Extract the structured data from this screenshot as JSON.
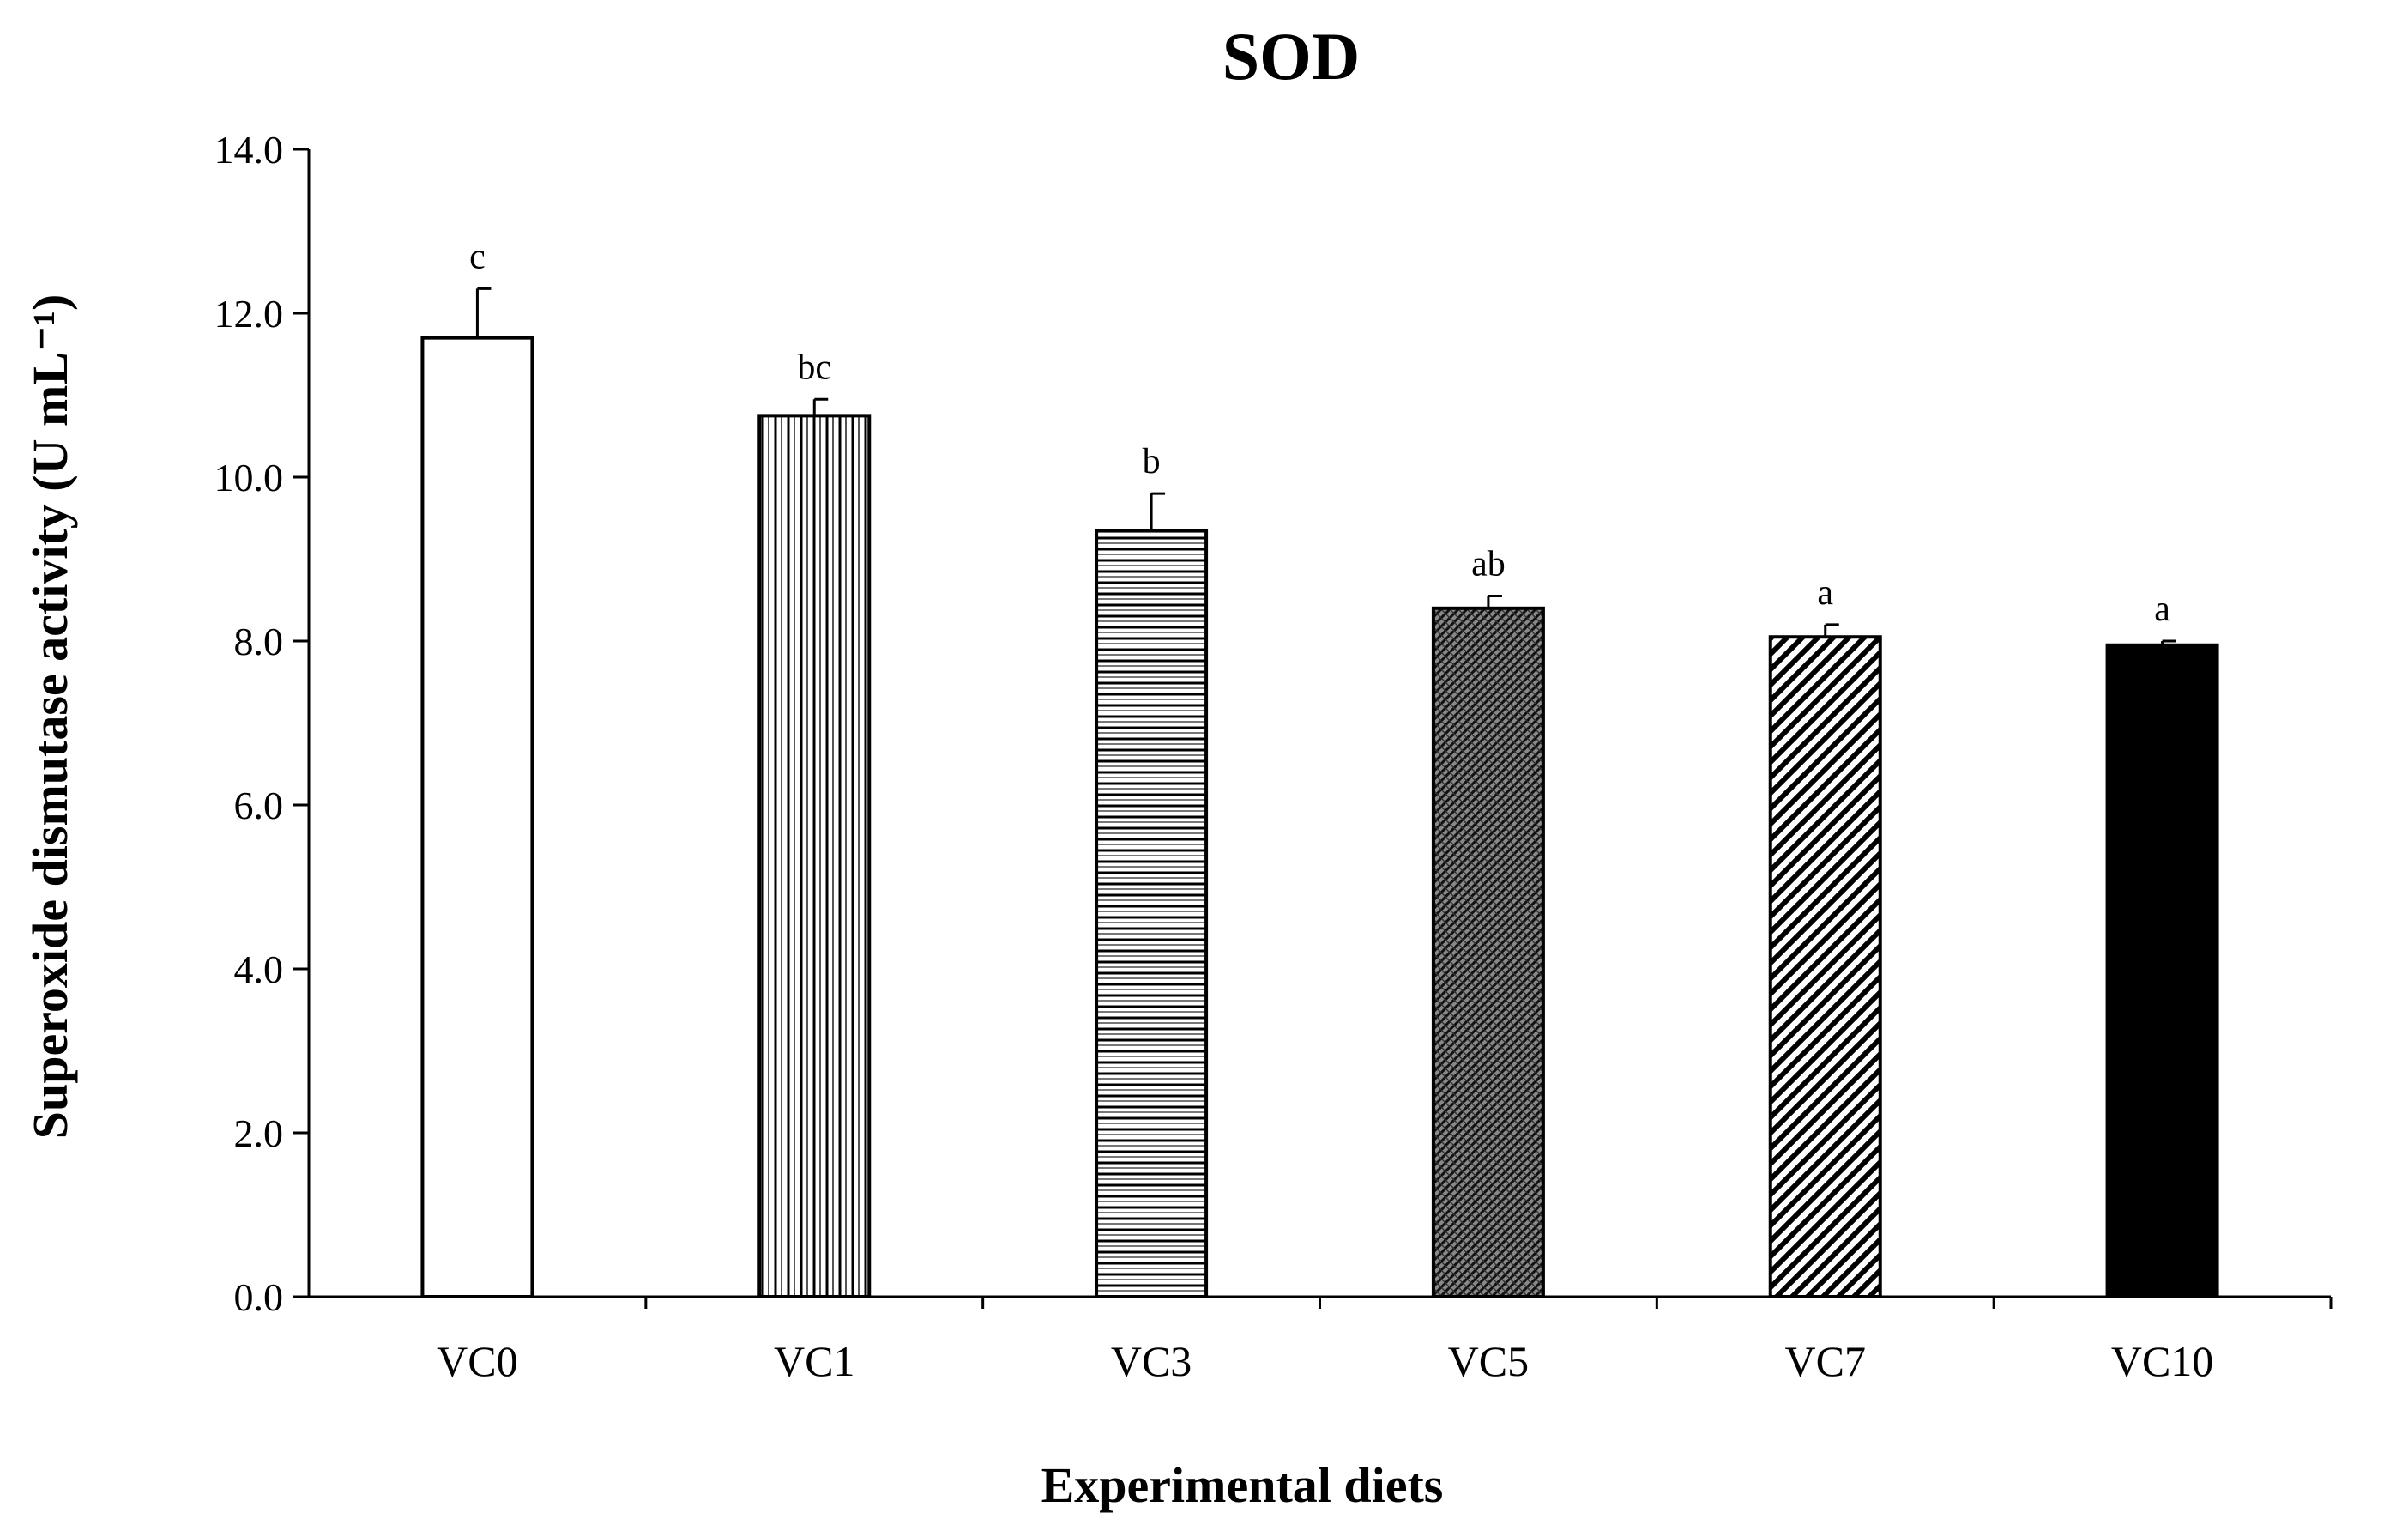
{
  "chart_data": {
    "type": "bar",
    "title": "SOD",
    "xlabel": "Experimental diets",
    "ylabel": "Superoxide dismutase activity (U mL⁻¹)",
    "ylim": [
      0,
      14
    ],
    "yticks": [
      "0.0",
      "2.0",
      "4.0",
      "6.0",
      "8.0",
      "10.0",
      "12.0",
      "14.0"
    ],
    "grid": false,
    "categories": [
      "VC0",
      "VC1",
      "VC3",
      "VC5",
      "VC7",
      "VC10"
    ],
    "values": [
      11.7,
      10.75,
      9.35,
      8.4,
      8.05,
      7.95
    ],
    "errors": [
      0.6,
      0.2,
      0.45,
      0.15,
      0.15,
      0.05
    ],
    "significance_letters": [
      "c",
      "bc",
      "b",
      "ab",
      "a",
      "a"
    ],
    "bar_fills": [
      "white",
      "vertical-lines",
      "horizontal-lines",
      "crosshatch-diagonal",
      "diagonal-stripes",
      "solid-black"
    ],
    "colors": {
      "bar_stroke": "#000000",
      "axis": "#000000",
      "background": "#ffffff"
    }
  }
}
